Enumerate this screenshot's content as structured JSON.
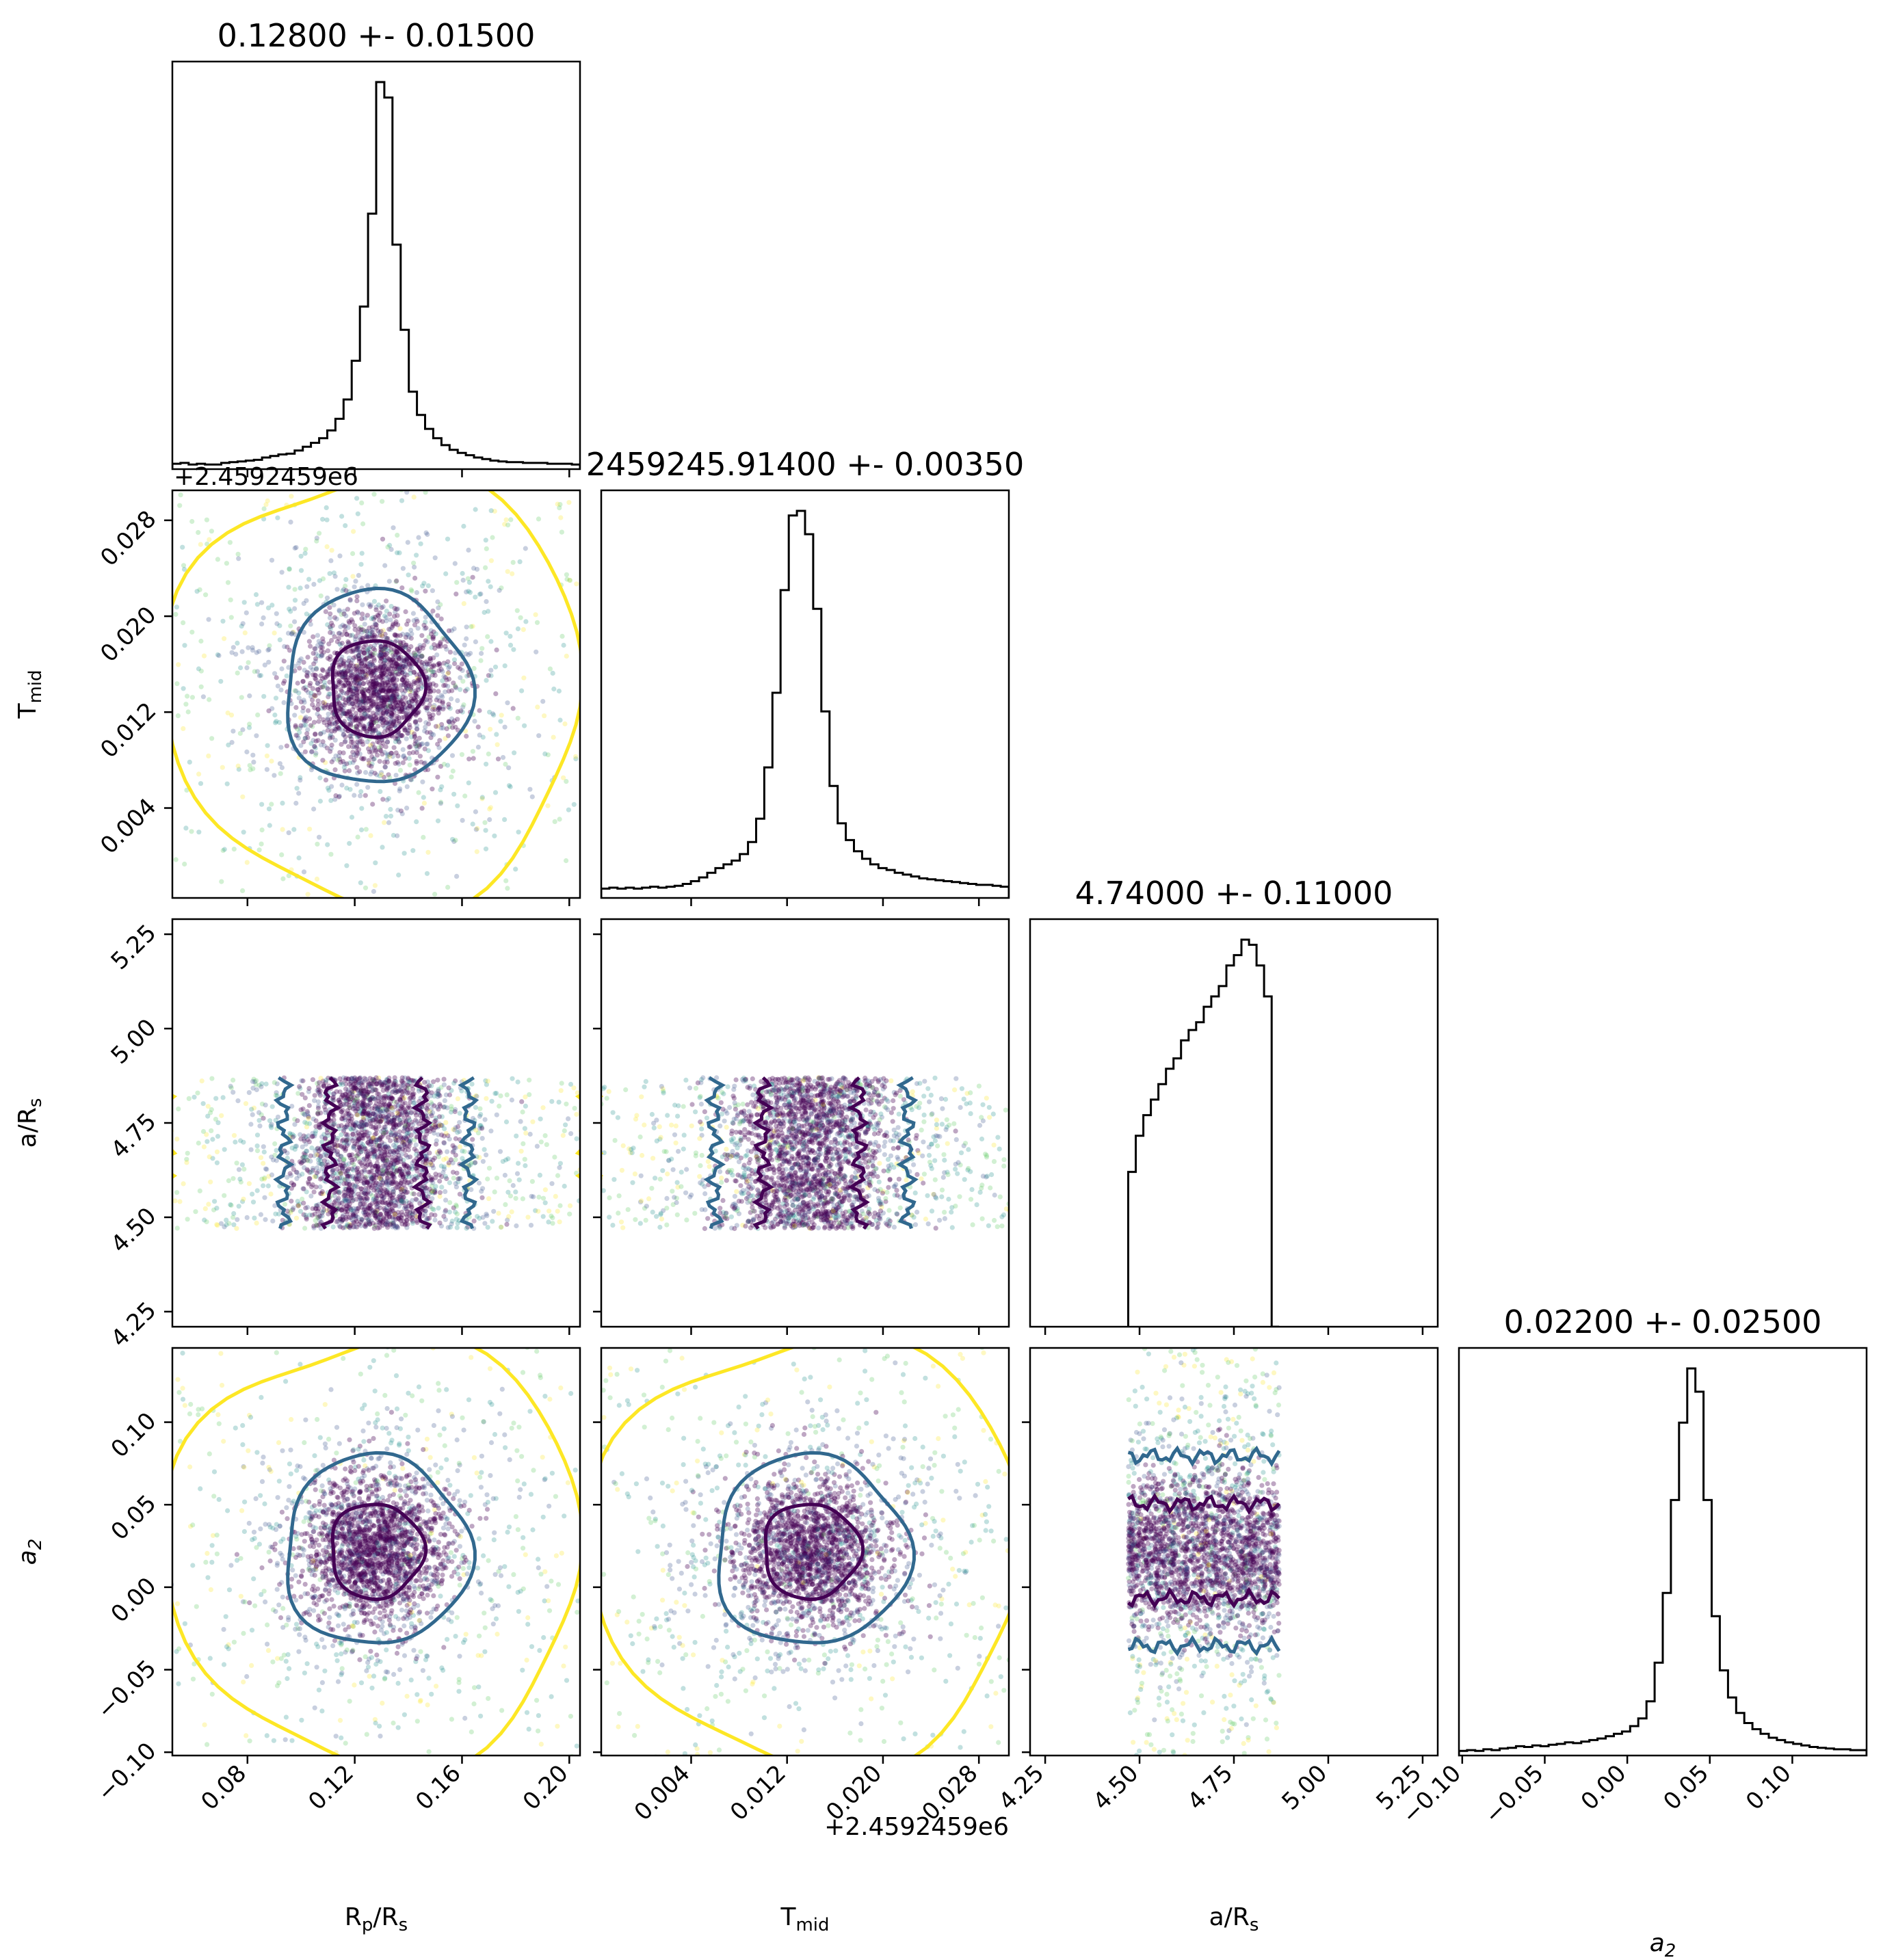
{
  "chart_data": {
    "type": "corner",
    "parameters": [
      {
        "key": "rp",
        "title": "0.12800 +- 0.01500",
        "range": [
          0.052,
          0.204
        ],
        "ticks": [
          0.08,
          0.12,
          0.16,
          0.2
        ],
        "tick_labels": [
          "0.08",
          "0.12",
          "0.16",
          "0.20"
        ],
        "center": 0.128,
        "sigma": 0.015,
        "offset": ""
      },
      {
        "key": "tmid",
        "title": "2459245.91400 +- 0.00350",
        "range": [
          -0.0035,
          0.0305
        ],
        "ticks": [
          0.004,
          0.012,
          0.02,
          0.028
        ],
        "tick_labels": [
          "0.004",
          "0.012",
          "0.020",
          "0.028"
        ],
        "center": 0.014,
        "sigma": 0.0035,
        "offset": "+2.4592459e6"
      },
      {
        "key": "ars",
        "title": "4.74000 +- 0.11000",
        "range": [
          4.21,
          5.29
        ],
        "ticks": [
          4.25,
          4.5,
          4.75,
          5.0,
          5.25
        ],
        "tick_labels": [
          "4.25",
          "4.50",
          "4.75",
          "5.00",
          "5.25"
        ],
        "center": 4.74,
        "sigma": 0.11,
        "offset": ""
      },
      {
        "key": "a2",
        "title": "0.02200 +- 0.02500",
        "range": [
          -0.102,
          0.145
        ],
        "ticks": [
          -0.1,
          -0.05,
          0.0,
          0.05,
          0.1
        ],
        "tick_labels": [
          "−0.10",
          "−0.05",
          "0.00",
          "0.05",
          "0.10"
        ],
        "center": 0.022,
        "sigma": 0.025,
        "offset": ""
      }
    ],
    "xlabels": {
      "rp": {
        "base": "R",
        "sub": "p",
        "tail": "/R",
        "sub2": "s"
      },
      "tmid": {
        "base": "T",
        "sub": "mid",
        "tail": "",
        "sub2": ""
      },
      "ars": {
        "base": "a/R",
        "sub": "s",
        "tail": "",
        "sub2": ""
      },
      "a2": {
        "base": "a",
        "sub": "2",
        "tail": "",
        "sub2": "",
        "italic": true
      }
    },
    "ylabels": {
      "tmid": {
        "base": "T",
        "sub": "mid",
        "tail": "",
        "sub2": ""
      },
      "ars": {
        "base": "a/R",
        "sub": "s",
        "tail": "",
        "sub2": ""
      },
      "a2": {
        "base": "a",
        "sub": "2",
        "tail": "",
        "sub2": "",
        "italic": true
      }
    },
    "histograms": [
      {
        "key": "rp",
        "bins": 50,
        "counts": [
          7,
          8,
          6,
          7,
          6,
          6,
          8,
          9,
          10,
          11,
          12,
          15,
          17,
          19,
          20,
          24,
          29,
          34,
          40,
          50,
          65,
          90,
          140,
          210,
          330,
          500,
          480,
          290,
          180,
          100,
          70,
          52,
          40,
          31,
          25,
          21,
          18,
          15,
          13,
          11,
          10,
          9,
          9,
          8,
          8,
          8,
          7,
          7,
          7,
          6
        ]
      },
      {
        "key": "tmid",
        "bins": 50,
        "counts": [
          10,
          11,
          10,
          11,
          10,
          11,
          12,
          11,
          12,
          13,
          15,
          18,
          22,
          27,
          32,
          36,
          40,
          47,
          60,
          85,
          140,
          220,
          330,
          410,
          415,
          390,
          310,
          200,
          120,
          80,
          62,
          50,
          42,
          36,
          32,
          30,
          27,
          25,
          23,
          21,
          20,
          19,
          18,
          17,
          16,
          15,
          14,
          14,
          13,
          12
        ]
      },
      {
        "key": "ars",
        "bins": 50,
        "counts": [
          0,
          0,
          0,
          0,
          0,
          0,
          0,
          0,
          0,
          0,
          0,
          0,
          0,
          0,
          0,
          0,
          0,
          0,
          0,
          0,
          0,
          0,
          0,
          0,
          0,
          0,
          0,
          0,
          0,
          0,
          0,
          0,
          0,
          0,
          0,
          0,
          0,
          0,
          0,
          0,
          0,
          0,
          0,
          0,
          0,
          0,
          0,
          0,
          0,
          0
        ]
      },
      {
        "key": "a2",
        "bins": 50,
        "counts": [
          6,
          7,
          6,
          8,
          7,
          9,
          10,
          12,
          11,
          13,
          12,
          14,
          15,
          17,
          16,
          18,
          20,
          22,
          25,
          28,
          31,
          38,
          48,
          70,
          120,
          210,
          330,
          430,
          500,
          470,
          330,
          180,
          110,
          75,
          55,
          42,
          34,
          28,
          23,
          20,
          17,
          15,
          13,
          11,
          10,
          9,
          8,
          8,
          7,
          7
        ]
      }
    ],
    "ars_histogram": {
      "low": 4.47,
      "high": 4.87,
      "bins": 20,
      "counts": [
        300,
        370,
        410,
        440,
        470,
        500,
        520,
        555,
        575,
        590,
        620,
        640,
        660,
        700,
        720,
        750,
        740,
        700,
        640,
        0
      ]
    },
    "colors": {
      "inner_contour": "#440154",
      "outer_contour": "#31688e",
      "far_contour": "#fde725",
      "scatter_palette": [
        "#440154",
        "#3b528b",
        "#21918c",
        "#5ec962",
        "#fde725"
      ],
      "hist_line": "#000000"
    }
  }
}
